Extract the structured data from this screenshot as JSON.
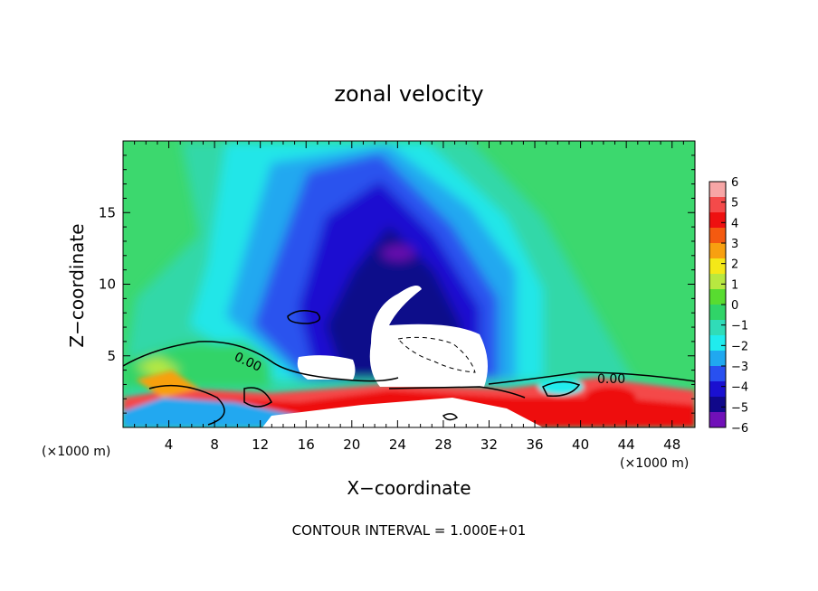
{
  "chart_data": {
    "type": "heatmap",
    "title": "zonal velocity",
    "xlabel": "X−coordinate",
    "ylabel": "Z−coordinate",
    "x_unit_left": "(×1000 m)",
    "x_unit_right": "(×1000 m)",
    "footer": "CONTOUR INTERVAL = 1.000E+01",
    "xlim": [
      0,
      50
    ],
    "ylim": [
      0,
      20
    ],
    "x_ticks": [
      4,
      8,
      12,
      16,
      20,
      24,
      28,
      32,
      36,
      40,
      44,
      48
    ],
    "x_tick_labels": [
      "4",
      "8",
      "12",
      "16",
      "20",
      "24",
      "28",
      "32",
      "36",
      "40",
      "44",
      "48"
    ],
    "y_ticks": [
      5,
      10,
      15
    ],
    "y_tick_labels": [
      "5",
      "10",
      "15"
    ],
    "colorbar": {
      "labels": [
        "6",
        "5",
        "4",
        "3",
        "2",
        "1",
        "0",
        "−1",
        "−2",
        "−3",
        "−4",
        "−5",
        "−6"
      ],
      "colors": [
        "#f7a6a6",
        "#f44a4a",
        "#ee1010",
        "#f45a10",
        "#f8a010",
        "#f4e818",
        "#b8e840",
        "#58dc30",
        "#30d468",
        "#30dcb8",
        "#20ecee",
        "#20a8f0",
        "#2850f0",
        "#1a10d0",
        "#10088a",
        "#7010b8"
      ]
    },
    "contour_labels": [
      "0.00",
      "0.00"
    ],
    "grid": false
  },
  "colors": {
    "background": "#3cd86e",
    "masked": "#ffffff",
    "contour": "#000000"
  }
}
